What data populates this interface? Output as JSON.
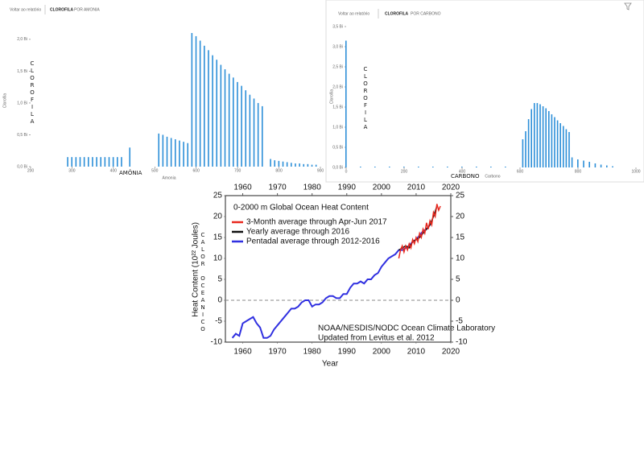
{
  "chart_data": [
    {
      "type": "bar",
      "back_link": "Voltar ao relatório",
      "tabs": [
        "CLOROFILA",
        "POR AMONIA"
      ],
      "ylabel": "Clorofila",
      "xlabel": "Amonia",
      "annotations": [
        "CLOROFILA",
        "AMÔNIA"
      ],
      "color": "#2d8fd8",
      "x": [
        290,
        300,
        310,
        320,
        330,
        340,
        350,
        360,
        370,
        380,
        390,
        400,
        410,
        420,
        440,
        510,
        520,
        530,
        540,
        550,
        560,
        570,
        580,
        590,
        600,
        610,
        620,
        630,
        640,
        650,
        660,
        670,
        680,
        690,
        700,
        710,
        720,
        730,
        740,
        750,
        760,
        780,
        790,
        800,
        810,
        820,
        830,
        840,
        850,
        860,
        870,
        880,
        890
      ],
      "values": [
        0.15,
        0.15,
        0.15,
        0.15,
        0.15,
        0.15,
        0.15,
        0.15,
        0.15,
        0.15,
        0.15,
        0.15,
        0.15,
        0.15,
        0.3,
        0.52,
        0.5,
        0.47,
        0.45,
        0.43,
        0.41,
        0.39,
        0.37,
        2.1,
        2.05,
        1.98,
        1.9,
        1.83,
        1.75,
        1.68,
        1.6,
        1.53,
        1.46,
        1.4,
        1.33,
        1.27,
        1.2,
        1.13,
        1.07,
        1.0,
        0.95,
        0.12,
        0.1,
        0.09,
        0.08,
        0.07,
        0.06,
        0.05,
        0.05,
        0.04,
        0.04,
        0.03,
        0.03
      ],
      "xlim": [
        200,
        900
      ],
      "xticks": [
        200,
        300,
        400,
        500,
        600,
        700,
        800,
        900
      ],
      "ylim": [
        0,
        2.1
      ],
      "yticks": [
        {
          "value": 0,
          "label": "0,0 Bi"
        },
        {
          "value": 0.5,
          "label": "0,5 Bi"
        },
        {
          "value": 1,
          "label": "1,0 Bi"
        },
        {
          "value": 1.5,
          "label": "1,5 Bi"
        },
        {
          "value": 2,
          "label": "2,0 Bi"
        }
      ]
    },
    {
      "type": "bar",
      "back_link": "Voltar ao relatório",
      "tabs": [
        "CLOROFILA",
        "POR CARBONO"
      ],
      "ylabel": "Clorofila",
      "xlabel": "Carbono",
      "annotations": [
        "CLOROFILA",
        "CARBONO"
      ],
      "color": "#2d8fd8",
      "x": [
        0,
        50,
        100,
        150,
        200,
        250,
        300,
        350,
        400,
        450,
        500,
        550,
        610,
        620,
        630,
        640,
        650,
        660,
        670,
        680,
        690,
        700,
        710,
        720,
        730,
        740,
        750,
        760,
        770,
        780,
        800,
        820,
        840,
        860,
        880,
        900,
        920
      ],
      "values": [
        3.15,
        0.02,
        0.02,
        0.02,
        0.02,
        0.02,
        0.02,
        0.02,
        0.02,
        0.02,
        0.02,
        0.02,
        0.7,
        0.9,
        1.2,
        1.45,
        1.6,
        1.6,
        1.57,
        1.52,
        1.47,
        1.4,
        1.32,
        1.25,
        1.17,
        1.1,
        1.03,
        0.95,
        0.88,
        0.25,
        0.2,
        0.17,
        0.14,
        0.1,
        0.07,
        0.05,
        0.03
      ],
      "xlim": [
        0,
        1000
      ],
      "xticks": [
        0,
        200,
        400,
        600,
        800,
        1000
      ],
      "ylim": [
        0,
        3.5
      ],
      "yticks": [
        {
          "value": 0,
          "label": "0,0 Bi"
        },
        {
          "value": 0.5,
          "label": "0,5 Bi"
        },
        {
          "value": 1,
          "label": "1,0 Bi"
        },
        {
          "value": 1.5,
          "label": "1,5 Bi"
        },
        {
          "value": 2,
          "label": "2,0 Bi"
        },
        {
          "value": 2.5,
          "label": "2,5 Bi"
        },
        {
          "value": 3,
          "label": "3,0 Bi"
        },
        {
          "value": 3.5,
          "label": "3,5 Bi"
        }
      ]
    },
    {
      "type": "line",
      "title": "0-2000 m Global Ocean Heat Content",
      "ylabel": "Heat Content (10²² Joules)",
      "xlabel": "Year",
      "annotations": [
        "CALOR OCEANICO",
        "NOAA/NESDIS/NODC Ocean Climate Laboratory",
        "Updated from Levitus et al. 2012"
      ],
      "legend": "upper left",
      "hline": 0,
      "mirror_ticks": true,
      "xlim": [
        1955,
        2020
      ],
      "xticks": [
        1960,
        1970,
        1980,
        1990,
        2000,
        2010,
        2020
      ],
      "ylim": [
        -10,
        25
      ],
      "yticks": [
        -10,
        -5,
        0,
        5,
        10,
        15,
        20,
        25
      ],
      "series": [
        {
          "name": "3-Month average through Apr-Jun 2017",
          "color": "#e8281e",
          "x": [
            2005,
            2005.5,
            2006,
            2006.5,
            2007,
            2007.5,
            2008,
            2008.5,
            2009,
            2009.5,
            2010,
            2010.5,
            2011,
            2011.5,
            2012,
            2012.5,
            2013,
            2013.5,
            2014,
            2014.5,
            2015,
            2015.5,
            2016,
            2016.5,
            2017
          ],
          "values": [
            10,
            12,
            13,
            11.5,
            13,
            12,
            13.5,
            12.5,
            14.5,
            13.5,
            15,
            14,
            16,
            15,
            17,
            16,
            18.5,
            17,
            19,
            18,
            21,
            20,
            23,
            21.5,
            22.5
          ]
        },
        {
          "name": "Yearly average through 2016",
          "color": "#111111",
          "x": [
            2005,
            2006,
            2007,
            2008,
            2009,
            2010,
            2011,
            2012,
            2013,
            2014,
            2015,
            2016
          ],
          "values": [
            12,
            12.5,
            13,
            12.5,
            14,
            14.5,
            15,
            16,
            17,
            18,
            20,
            22.5
          ]
        },
        {
          "name": "Pentadal average through 2012-2016",
          "color": "#3030e0",
          "x": [
            1957,
            1958,
            1959,
            1960,
            1962,
            1963,
            1964,
            1965,
            1966,
            1967,
            1968,
            1969,
            1970,
            1971,
            1972,
            1973,
            1974,
            1975,
            1976,
            1977,
            1978,
            1979,
            1980,
            1981,
            1982,
            1983,
            1984,
            1985,
            1986,
            1987,
            1988,
            1989,
            1990,
            1991,
            1992,
            1993,
            1994,
            1995,
            1996,
            1997,
            1998,
            1999,
            2000,
            2001,
            2002,
            2003,
            2004,
            2005,
            2006,
            2007,
            2008,
            2009,
            2010,
            2011,
            2012,
            2013,
            2014
          ],
          "values": [
            -9,
            -8,
            -8.5,
            -5.5,
            -4.5,
            -4,
            -5.5,
            -6.5,
            -9,
            -9,
            -8.5,
            -7,
            -6,
            -5,
            -4,
            -3,
            -2,
            -2,
            -1.5,
            -0.5,
            0,
            0,
            -1.5,
            -1,
            -1,
            -0.5,
            0.5,
            1,
            1,
            0.5,
            0.5,
            1.5,
            1.5,
            3,
            4,
            4,
            4.5,
            4,
            5,
            5,
            6,
            6.5,
            8,
            9,
            10,
            10.5,
            11,
            12,
            12,
            12.5,
            13,
            14,
            14.5,
            15.5,
            16.5,
            17,
            18
          ]
        }
      ]
    }
  ]
}
